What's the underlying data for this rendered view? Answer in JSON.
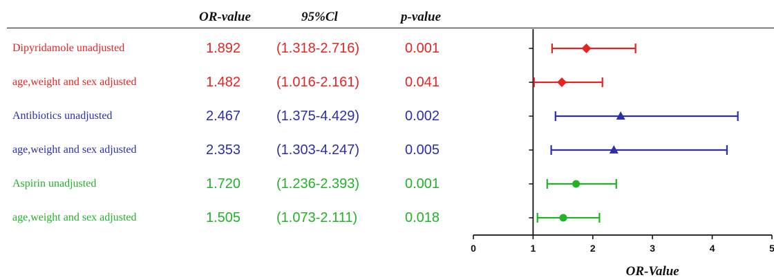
{
  "header": {
    "or_label": "OR-value",
    "ci_label": "95%Cl",
    "p_label": "p-value"
  },
  "colors": {
    "red": "#e52421",
    "blue": "#2b2fa8",
    "green": "#22b22a",
    "axis": "#111111"
  },
  "chart_data": {
    "type": "forest",
    "xlabel": "OR-Value",
    "xlim": [
      0,
      5
    ],
    "xticks": [
      "0",
      "1",
      "2",
      "3",
      "4",
      "5"
    ],
    "reference_line": 1,
    "rows": [
      {
        "label": "Dipyridamole unadjusted",
        "or_text": "1.892",
        "ci_text": "(1.318-2.716)",
        "p_text": "0.001",
        "or": 1.892,
        "lo": 1.318,
        "hi": 2.716,
        "color": "#e52421",
        "marker": "diamond"
      },
      {
        "label": "age,weight and sex adjusted",
        "or_text": "1.482",
        "ci_text": "(1.016-2.161)",
        "p_text": "0.041",
        "or": 1.482,
        "lo": 1.016,
        "hi": 2.161,
        "color": "#e52421",
        "marker": "diamond"
      },
      {
        "label": "Antibiotics unadjusted",
        "or_text": "2.467",
        "ci_text": "(1.375-4.429)",
        "p_text": "0.002",
        "or": 2.467,
        "lo": 1.375,
        "hi": 4.429,
        "color": "#2b2fa8",
        "marker": "triangle"
      },
      {
        "label": "age,weight and sex adjusted",
        "or_text": "2.353",
        "ci_text": "(1.303-4.247)",
        "p_text": "0.005",
        "or": 2.353,
        "lo": 1.303,
        "hi": 4.247,
        "color": "#2b2fa8",
        "marker": "triangle"
      },
      {
        "label": "Aspirin unadjusted",
        "or_text": "1.720",
        "ci_text": "(1.236-2.393)",
        "p_text": "0.001",
        "or": 1.72,
        "lo": 1.236,
        "hi": 2.393,
        "color": "#22b22a",
        "marker": "circle"
      },
      {
        "label": "age,weight and sex adjusted",
        "or_text": "1.505",
        "ci_text": "(1.073-2.111)",
        "p_text": "0.018",
        "or": 1.505,
        "lo": 1.073,
        "hi": 2.111,
        "color": "#22b22a",
        "marker": "circle"
      }
    ]
  }
}
